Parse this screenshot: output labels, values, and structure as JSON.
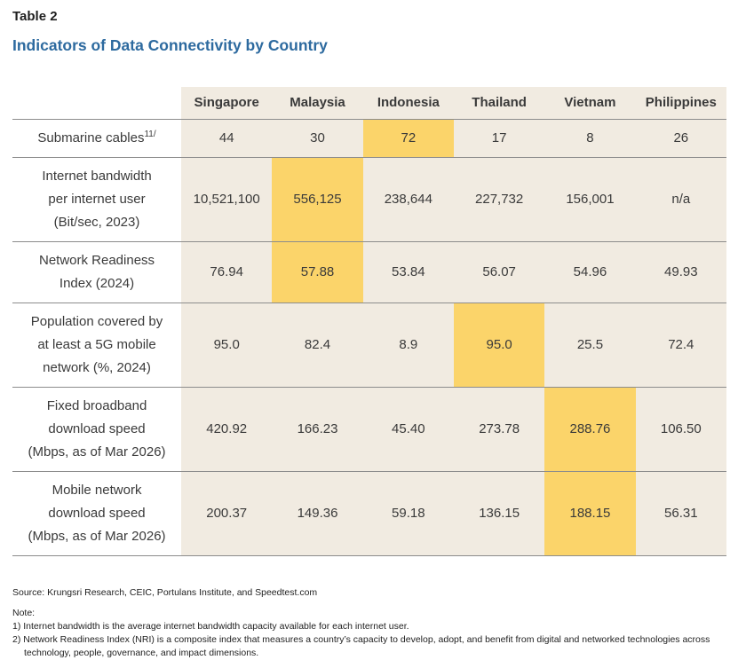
{
  "header": {
    "table_label": "Table 2",
    "title": "Indicators of Data Connectivity by Country"
  },
  "table": {
    "columns": [
      "Singapore",
      "Malaysia",
      "Indonesia",
      "Thailand",
      "Vietnam",
      "Philippines"
    ],
    "rows": [
      {
        "label": "Submarine cables",
        "label_sup": "11/",
        "values": [
          "44",
          "30",
          "72",
          "17",
          "8",
          "26"
        ],
        "highlight_col": 2
      },
      {
        "label": "Internet bandwidth\nper internet user\n(Bit/sec, 2023)",
        "values": [
          "10,521,100",
          "556,125",
          "238,644",
          "227,732",
          "156,001",
          "n/a"
        ],
        "highlight_col": 1
      },
      {
        "label": "Network Readiness\nIndex (2024)",
        "values": [
          "76.94",
          "57.88",
          "53.84",
          "56.07",
          "54.96",
          "49.93"
        ],
        "highlight_col": 1
      },
      {
        "label": "Population covered by\nat least a 5G mobile\nnetwork (%, 2024)",
        "values": [
          "95.0",
          "82.4",
          "8.9",
          "95.0",
          "25.5",
          "72.4"
        ],
        "highlight_col": 3
      },
      {
        "label": "Fixed broadband\ndownload speed\n(Mbps, as of Mar 2026)",
        "values": [
          "420.92",
          "166.23",
          "45.40",
          "273.78",
          "288.76",
          "106.50"
        ],
        "highlight_col": 4
      },
      {
        "label": "Mobile network\ndownload speed\n(Mbps, as of Mar 2026)",
        "values": [
          "200.37",
          "149.36",
          "59.18",
          "136.15",
          "188.15",
          "56.31"
        ],
        "highlight_col": 4
      }
    ]
  },
  "footer": {
    "source": "Source: Krungsri Research, CEIC, Portulans Institute, and Speedtest.com",
    "note_label": "Note:",
    "notes": [
      "1) Internet bandwidth is the average internet bandwidth capacity available for each internet user.",
      "2) Network Readiness Index (NRI) is a composite index that measures a country’s capacity to develop, adopt, and benefit from digital and networked technologies across technology, people, governance, and impact dimensions."
    ]
  },
  "colors": {
    "title_blue": "#2d6a9f",
    "cell_beige": "#f1ebe1",
    "highlight_yellow": "#fbd46a",
    "rule_gray": "#8c8c8c",
    "text": "#3a3a3a"
  }
}
